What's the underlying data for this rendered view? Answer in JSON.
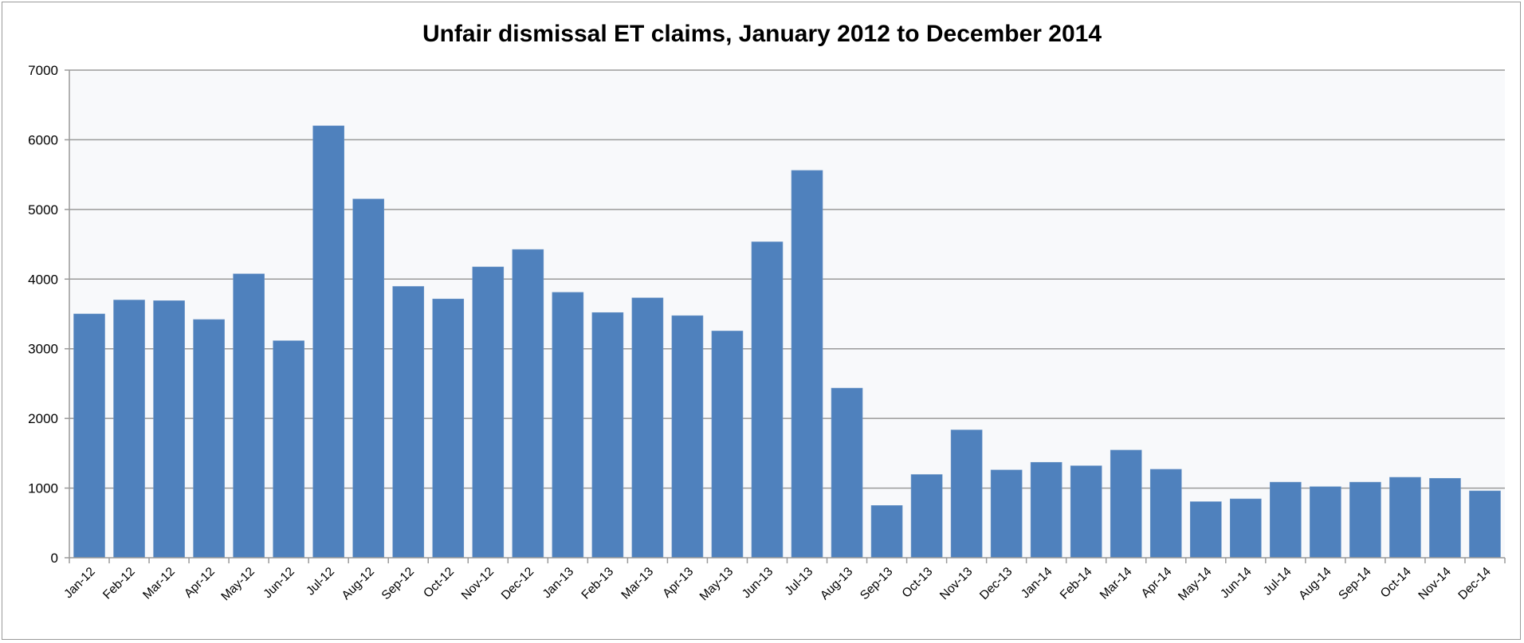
{
  "chart_data": {
    "type": "bar",
    "title": "Unfair dismissal ET claims, January 2012 to December 2014",
    "xlabel": "",
    "ylabel": "",
    "ylim": [
      0,
      7000
    ],
    "yticks": [
      0,
      1000,
      2000,
      3000,
      4000,
      5000,
      6000,
      7000
    ],
    "grid": true,
    "bar_color": "#4f81bd",
    "categories": [
      "Jan-12",
      "Feb-12",
      "Mar-12",
      "Apr-12",
      "May-12",
      "Jun-12",
      "Jul-12",
      "Aug-12",
      "Sep-12",
      "Oct-12",
      "Nov-12",
      "Dec-12",
      "Jan-13",
      "Feb-13",
      "Mar-13",
      "Apr-13",
      "May-13",
      "Jun-13",
      "Jul-13",
      "Aug-13",
      "Sep-13",
      "Oct-13",
      "Nov-13",
      "Dec-13",
      "Jan-14",
      "Feb-14",
      "Mar-14",
      "Apr-14",
      "May-14",
      "Jun-14",
      "Jul-14",
      "Aug-14",
      "Sep-14",
      "Oct-14",
      "Nov-14",
      "Dec-14"
    ],
    "values": [
      3500,
      3700,
      3690,
      3420,
      4075,
      3115,
      6200,
      5150,
      3895,
      3715,
      4175,
      4425,
      3810,
      3520,
      3730,
      3475,
      3255,
      4535,
      5560,
      2435,
      750,
      1195,
      1835,
      1260,
      1370,
      1320,
      1545,
      1270,
      805,
      845,
      1085,
      1020,
      1085,
      1155,
      1140,
      960
    ]
  }
}
